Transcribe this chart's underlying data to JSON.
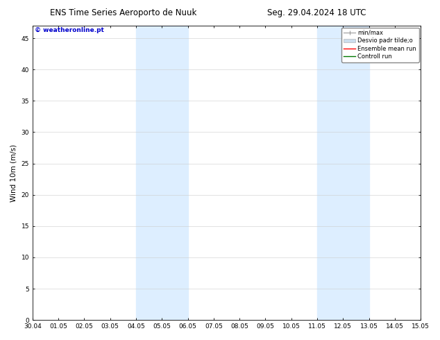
{
  "title_left": "ENS Time Series Aeroporto de Nuuk",
  "title_right": "Seg. 29.04.2024 18 UTC",
  "ylabel": "Wind 10m (m/s)",
  "watermark": "© weatheronline.pt",
  "watermark_color": "#0000cc",
  "xtick_labels": [
    "30.04",
    "01.05",
    "02.05",
    "03.05",
    "04.05",
    "05.05",
    "06.05",
    "07.05",
    "08.05",
    "09.05",
    "10.05",
    "11.05",
    "12.05",
    "13.05",
    "14.05",
    "15.05"
  ],
  "ylim": [
    0,
    47
  ],
  "ytick_labels": [
    0,
    5,
    10,
    15,
    20,
    25,
    30,
    35,
    40,
    45
  ],
  "shaded_regions": [
    {
      "xstart": 4.0,
      "xend": 6.0
    },
    {
      "xstart": 11.0,
      "xend": 13.0
    }
  ],
  "shade_color": "#ddeeff",
  "background_color": "#ffffff",
  "grid_color": "#cccccc",
  "legend_items": [
    {
      "label": "min/max",
      "color": "#aaaaaa"
    },
    {
      "label": "Desvio padr tilde;o",
      "color": "#ccddee"
    },
    {
      "label": "Ensemble mean run",
      "color": "#ff0000"
    },
    {
      "label": "Controll run",
      "color": "#007700"
    }
  ],
  "title_fontsize": 8.5,
  "tick_fontsize": 6.5,
  "ylabel_fontsize": 7.5,
  "legend_fontsize": 6,
  "watermark_fontsize": 6.5
}
